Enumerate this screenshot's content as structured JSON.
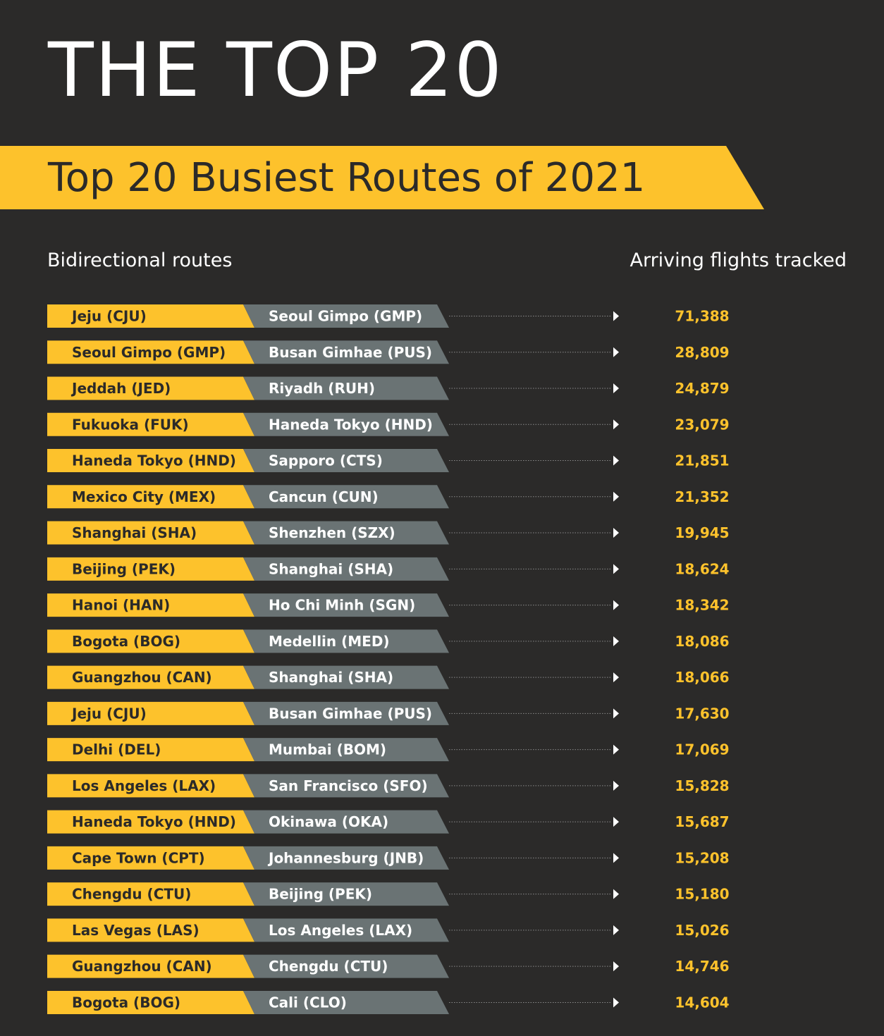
{
  "page": {
    "title": "THE TOP 20"
  },
  "colors": {
    "background": "#2b2a29",
    "accent": "#fdc22c",
    "destination_box": "#6a7374",
    "text_light": "#ffffff"
  },
  "chart_data": {
    "type": "table",
    "title": "Top 20 Busiest Routes of 2021",
    "column_headers": {
      "route": "Bidirectional routes",
      "value": "Arriving flights tracked"
    },
    "rows": [
      {
        "origin": "Jeju (CJU)",
        "destination": "Seoul Gimpo (GMP)",
        "value": "71,388"
      },
      {
        "origin": "Seoul Gimpo (GMP)",
        "destination": "Busan Gimhae (PUS)",
        "value": "28,809"
      },
      {
        "origin": "Jeddah (JED)",
        "destination": "Riyadh (RUH)",
        "value": "24,879"
      },
      {
        "origin": "Fukuoka (FUK)",
        "destination": "Haneda Tokyo (HND)",
        "value": "23,079"
      },
      {
        "origin": "Haneda Tokyo (HND)",
        "destination": "Sapporo (CTS)",
        "value": "21,851"
      },
      {
        "origin": "Mexico City (MEX)",
        "destination": "Cancun (CUN)",
        "value": "21,352"
      },
      {
        "origin": "Shanghai (SHA)",
        "destination": "Shenzhen (SZX)",
        "value": "19,945"
      },
      {
        "origin": "Beijing (PEK)",
        "destination": "Shanghai (SHA)",
        "value": "18,624"
      },
      {
        "origin": "Hanoi (HAN)",
        "destination": "Ho Chi Minh (SGN)",
        "value": "18,342"
      },
      {
        "origin": "Bogota (BOG)",
        "destination": "Medellin (MED)",
        "value": "18,086"
      },
      {
        "origin": "Guangzhou (CAN)",
        "destination": "Shanghai (SHA)",
        "value": "18,066"
      },
      {
        "origin": "Jeju (CJU)",
        "destination": "Busan Gimhae (PUS)",
        "value": "17,630"
      },
      {
        "origin": "Delhi (DEL)",
        "destination": "Mumbai (BOM)",
        "value": "17,069"
      },
      {
        "origin": "Los Angeles (LAX)",
        "destination": "San Francisco (SFO)",
        "value": "15,828"
      },
      {
        "origin": "Haneda Tokyo (HND)",
        "destination": "Okinawa (OKA)",
        "value": "15,687"
      },
      {
        "origin": "Cape Town (CPT)",
        "destination": "Johannesburg (JNB)",
        "value": "15,208"
      },
      {
        "origin": "Chengdu (CTU)",
        "destination": "Beijing (PEK)",
        "value": "15,180"
      },
      {
        "origin": "Las Vegas (LAS)",
        "destination": "Los Angeles (LAX)",
        "value": "15,026"
      },
      {
        "origin": "Guangzhou (CAN)",
        "destination": "Chengdu (CTU)",
        "value": "14,746"
      },
      {
        "origin": "Bogota (BOG)",
        "destination": "Cali (CLO)",
        "value": "14,604"
      }
    ]
  }
}
